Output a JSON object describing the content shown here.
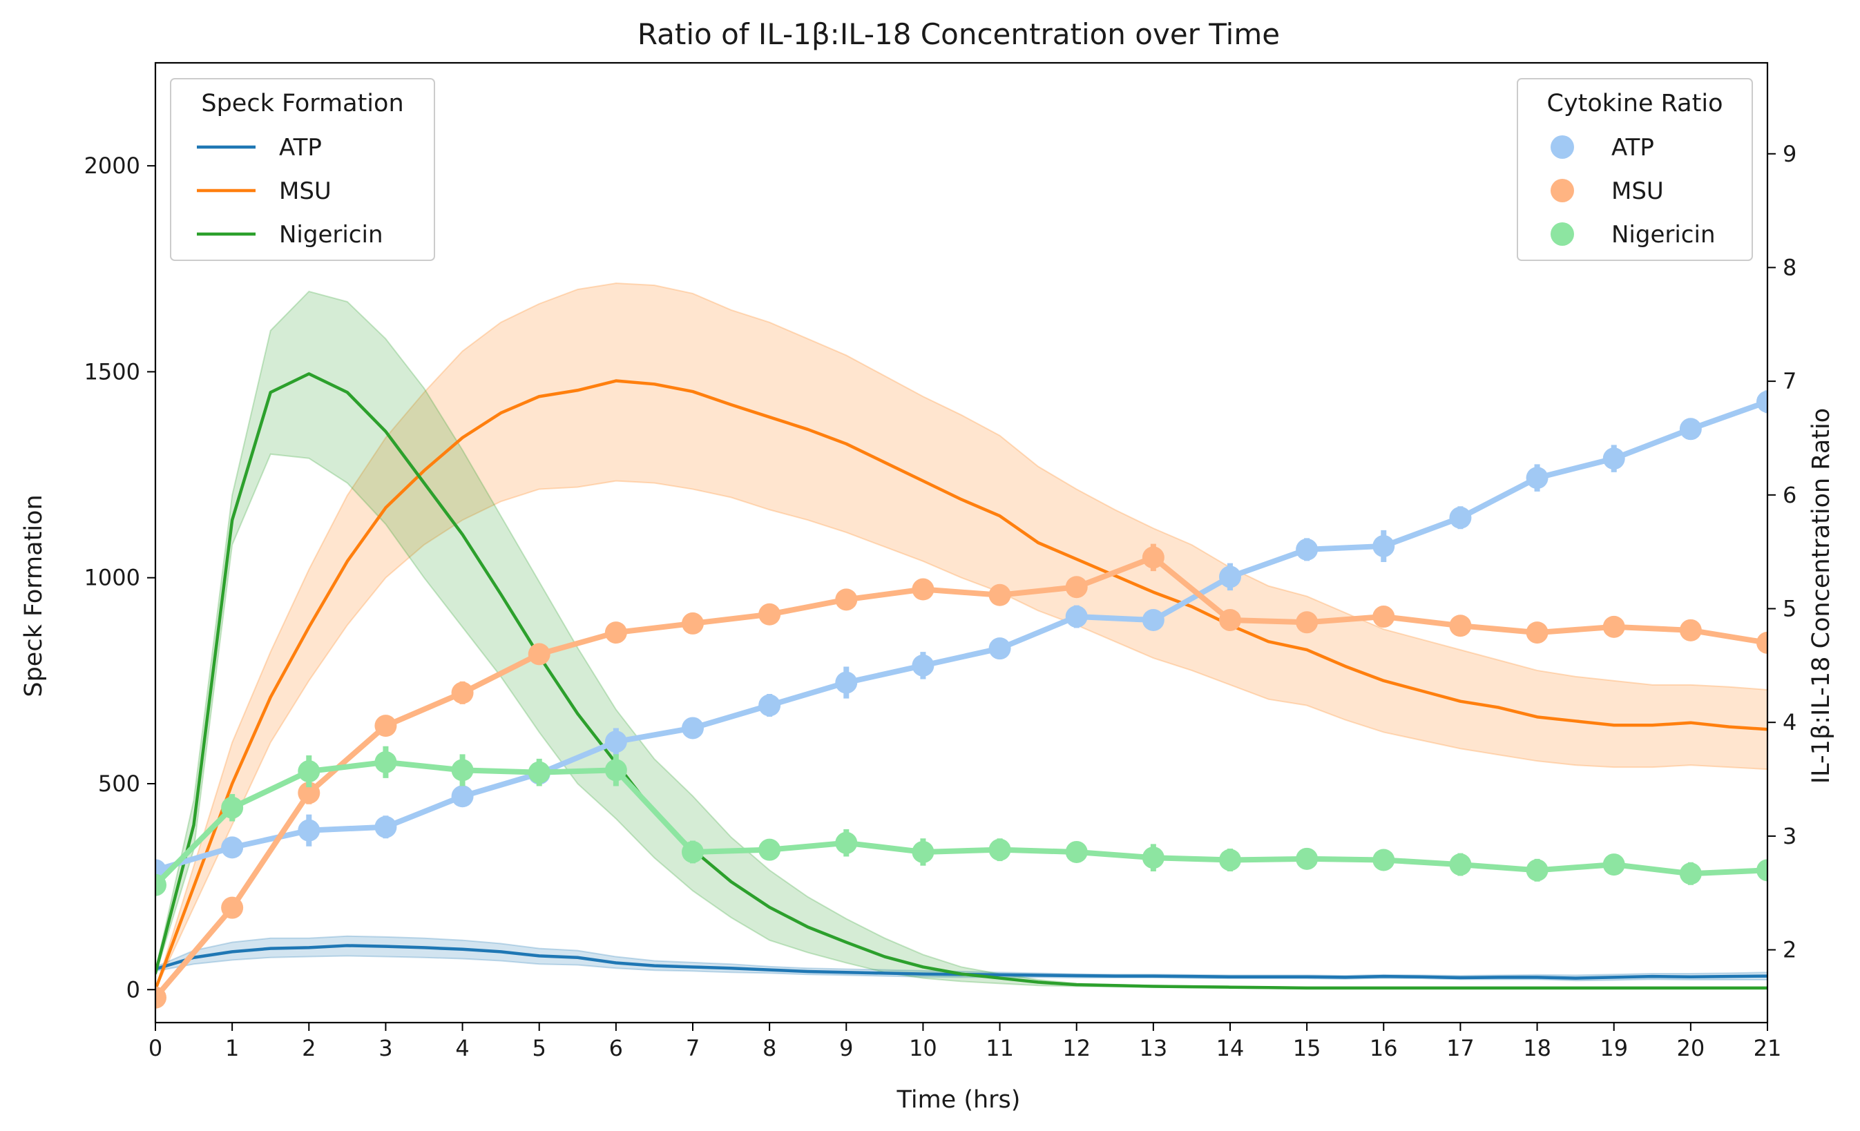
{
  "chart_data": {
    "type": "line",
    "title": "Ratio of IL-1β:IL-18 Concentration over Time",
    "xlabel": "Time (hrs)",
    "ylabel": "Speck Formation",
    "ylabel_right": "IL-1β:IL-18 Concentration Ratio",
    "xlim": [
      0,
      21
    ],
    "ylim": [
      -80,
      2250
    ],
    "ylim_right": [
      1.36,
      9.8
    ],
    "x_ticks": [
      0,
      1,
      2,
      3,
      4,
      5,
      6,
      7,
      8,
      9,
      10,
      11,
      12,
      13,
      14,
      15,
      16,
      17,
      18,
      19,
      20,
      21
    ],
    "y_ticks": [
      0,
      500,
      1000,
      1500,
      2000
    ],
    "y_ticks_right": [
      2,
      3,
      4,
      5,
      6,
      7,
      8,
      9
    ],
    "grid": false,
    "legend_left": {
      "title": "Speck Formation",
      "position": "top-left",
      "items": [
        "ATP",
        "MSU",
        "Nigericin"
      ]
    },
    "legend_right": {
      "title": "Cytokine Ratio",
      "position": "top-right",
      "items": [
        "ATP",
        "MSU",
        "Nigericin"
      ]
    },
    "colors": {
      "speck": {
        "ATP": "#1f77b4",
        "MSU": "#ff7f0e",
        "Nigericin": "#2ca02c"
      },
      "ratio": {
        "ATP": "#a1c9f4",
        "MSU": "#ffb482",
        "Nigericin": "#8de5a1"
      }
    },
    "speck_series": [
      {
        "name": "ATP",
        "x": [
          0,
          0.5,
          1,
          1.5,
          2,
          2.5,
          3,
          3.5,
          4,
          4.5,
          5,
          5.5,
          6,
          6.5,
          7,
          7.5,
          8,
          8.5,
          9,
          9.5,
          10,
          10.5,
          11,
          11.5,
          12,
          12.5,
          13,
          13.5,
          14,
          14.5,
          15,
          15.5,
          16,
          16.5,
          17,
          17.5,
          18,
          18.5,
          19,
          19.5,
          20,
          20.5,
          21
        ],
        "y": [
          50,
          78,
          92,
          100,
          102,
          107,
          105,
          102,
          98,
          92,
          82,
          78,
          65,
          58,
          55,
          52,
          48,
          44,
          42,
          40,
          38,
          37,
          36,
          35,
          34,
          33,
          33,
          32,
          31,
          31,
          31,
          30,
          32,
          31,
          29,
          30,
          30,
          28,
          30,
          32,
          31,
          32,
          33
        ],
        "upper": [
          55,
          95,
          115,
          125,
          125,
          130,
          128,
          125,
          120,
          112,
          100,
          95,
          80,
          70,
          66,
          62,
          56,
          52,
          50,
          48,
          46,
          44,
          42,
          40,
          38,
          37,
          37,
          36,
          35,
          35,
          35,
          34,
          36,
          35,
          34,
          35,
          36,
          35,
          37,
          39,
          39,
          40,
          42
        ],
        "lower": [
          45,
          62,
          72,
          78,
          80,
          82,
          80,
          78,
          75,
          70,
          62,
          60,
          52,
          47,
          45,
          42,
          40,
          37,
          35,
          33,
          31,
          30,
          30,
          30,
          29,
          29,
          29,
          28,
          27,
          27,
          27,
          26,
          28,
          27,
          25,
          25,
          25,
          22,
          23,
          25,
          24,
          24,
          24
        ]
      },
      {
        "name": "MSU",
        "x": [
          0,
          0.5,
          1,
          1.5,
          2,
          2.5,
          3,
          3.5,
          4,
          4.5,
          5,
          5.5,
          6,
          6.5,
          7,
          7.5,
          8,
          8.5,
          9,
          9.5,
          10,
          10.5,
          11,
          11.5,
          12,
          12.5,
          13,
          13.5,
          14,
          14.5,
          15,
          15.5,
          16,
          16.5,
          17,
          17.5,
          18,
          18.5,
          19,
          19.5,
          20,
          20.5,
          21
        ],
        "y": [
          0,
          250,
          500,
          710,
          880,
          1040,
          1170,
          1260,
          1340,
          1400,
          1440,
          1455,
          1478,
          1470,
          1452,
          1420,
          1390,
          1360,
          1325,
          1280,
          1235,
          1190,
          1150,
          1085,
          1045,
          1005,
          965,
          930,
          885,
          845,
          825,
          785,
          750,
          725,
          700,
          685,
          662,
          652,
          642,
          642,
          648,
          638,
          632
        ],
        "upper": [
          0,
          300,
          600,
          820,
          1020,
          1200,
          1340,
          1450,
          1550,
          1620,
          1665,
          1700,
          1715,
          1710,
          1690,
          1650,
          1620,
          1580,
          1540,
          1490,
          1440,
          1395,
          1345,
          1270,
          1215,
          1165,
          1120,
          1080,
          1025,
          980,
          955,
          915,
          875,
          850,
          825,
          800,
          775,
          760,
          750,
          740,
          740,
          735,
          728
        ],
        "lower": [
          0,
          200,
          400,
          600,
          750,
          885,
          1000,
          1080,
          1140,
          1185,
          1215,
          1220,
          1235,
          1230,
          1215,
          1195,
          1165,
          1140,
          1110,
          1075,
          1040,
          1000,
          965,
          920,
          885,
          845,
          805,
          775,
          740,
          705,
          690,
          655,
          625,
          605,
          585,
          570,
          555,
          545,
          540,
          540,
          545,
          540,
          535
        ]
      },
      {
        "name": "Nigericin",
        "x": [
          0,
          0.5,
          1,
          1.5,
          2,
          2.5,
          3,
          3.5,
          4,
          4.5,
          5,
          5.5,
          6,
          6.5,
          7,
          7.5,
          8,
          8.5,
          9,
          9.5,
          10,
          10.5,
          11,
          11.5,
          12,
          12.5,
          13,
          13.5,
          14,
          14.5,
          15,
          15.5,
          16,
          16.5,
          17,
          17.5,
          18,
          18.5,
          19,
          19.5,
          20,
          20.5,
          21
        ],
        "y": [
          40,
          400,
          1140,
          1450,
          1495,
          1450,
          1355,
          1230,
          1105,
          960,
          810,
          670,
          550,
          430,
          340,
          262,
          200,
          152,
          115,
          80,
          55,
          38,
          28,
          18,
          12,
          10,
          8,
          7,
          6,
          5,
          4,
          4,
          4,
          4,
          4,
          4,
          4,
          4,
          4,
          4,
          4,
          4,
          4
        ],
        "upper": [
          45,
          460,
          1200,
          1600,
          1695,
          1670,
          1580,
          1460,
          1310,
          1150,
          990,
          830,
          680,
          560,
          470,
          370,
          290,
          225,
          172,
          125,
          85,
          55,
          38,
          24,
          15,
          12,
          10,
          9,
          8,
          7,
          6,
          6,
          6,
          6,
          6,
          6,
          6,
          6,
          6,
          6,
          6,
          6,
          6
        ],
        "lower": [
          35,
          340,
          1080,
          1300,
          1290,
          1230,
          1130,
          1000,
          880,
          760,
          625,
          500,
          415,
          320,
          240,
          175,
          120,
          90,
          65,
          42,
          28,
          20,
          15,
          10,
          8,
          7,
          6,
          5,
          4,
          3,
          2,
          2,
          2,
          2,
          2,
          2,
          2,
          2,
          2,
          2,
          2,
          2,
          2
        ]
      }
    ],
    "ratio_series": [
      {
        "name": "ATP",
        "x": [
          0,
          1,
          2,
          3,
          4,
          5,
          6,
          7,
          8,
          9,
          10,
          11,
          12,
          13,
          14,
          15,
          16,
          17,
          18,
          19,
          20,
          21
        ],
        "y": [
          2.7,
          2.9,
          3.05,
          3.08,
          3.35,
          3.55,
          3.83,
          3.95,
          4.15,
          4.35,
          4.5,
          4.65,
          4.93,
          4.9,
          5.28,
          5.52,
          5.55,
          5.8,
          6.15,
          6.32,
          6.58,
          6.82
        ],
        "err": [
          0.08,
          0.06,
          0.14,
          0.1,
          0.08,
          0.08,
          0.12,
          0.08,
          0.1,
          0.14,
          0.12,
          0.08,
          0.1,
          0.06,
          0.12,
          0.1,
          0.14,
          0.1,
          0.12,
          0.12,
          0.08,
          0.1
        ]
      },
      {
        "name": "MSU",
        "x": [
          0,
          1,
          2,
          3,
          4,
          5,
          6,
          7,
          8,
          9,
          10,
          11,
          12,
          13,
          14,
          15,
          16,
          17,
          18,
          19,
          20,
          21
        ],
        "y": [
          1.58,
          2.37,
          3.38,
          3.97,
          4.26,
          4.6,
          4.79,
          4.87,
          4.95,
          5.08,
          5.17,
          5.12,
          5.19,
          5.45,
          4.9,
          4.88,
          4.93,
          4.85,
          4.79,
          4.84,
          4.81,
          4.7
        ],
        "err": [
          0.04,
          0.06,
          0.1,
          0.08,
          0.1,
          0.06,
          0.06,
          0.08,
          0.06,
          0.08,
          0.06,
          0.08,
          0.08,
          0.12,
          0.08,
          0.08,
          0.06,
          0.06,
          0.08,
          0.06,
          0.08,
          0.06
        ]
      },
      {
        "name": "Nigericin",
        "x": [
          0,
          1,
          2,
          3,
          4,
          5,
          6,
          7,
          8,
          9,
          10,
          11,
          12,
          13,
          14,
          15,
          16,
          17,
          18,
          19,
          20,
          21
        ],
        "y": [
          2.57,
          3.25,
          3.57,
          3.65,
          3.58,
          3.56,
          3.58,
          2.86,
          2.88,
          2.94,
          2.86,
          2.88,
          2.86,
          2.81,
          2.79,
          2.8,
          2.79,
          2.75,
          2.7,
          2.75,
          2.67,
          2.7
        ],
        "err": [
          0.06,
          0.12,
          0.14,
          0.14,
          0.14,
          0.12,
          0.14,
          0.1,
          0.08,
          0.12,
          0.12,
          0.1,
          0.08,
          0.12,
          0.1,
          0.08,
          0.08,
          0.1,
          0.1,
          0.08,
          0.1,
          0.08
        ]
      }
    ]
  }
}
